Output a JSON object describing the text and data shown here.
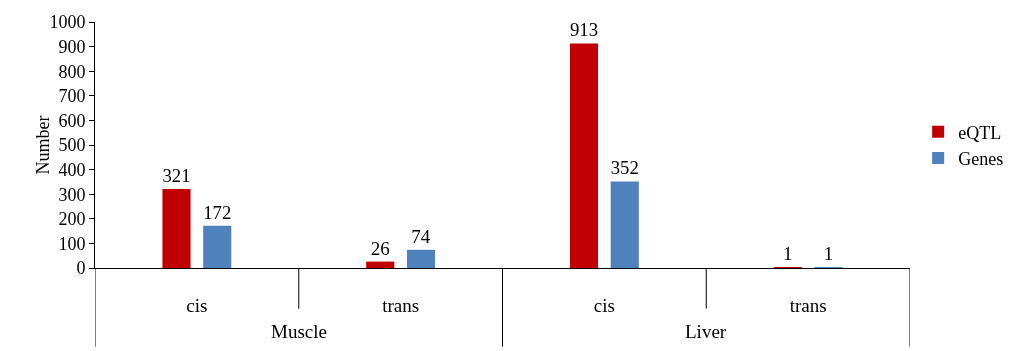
{
  "chart_data": {
    "type": "bar",
    "ylabel": "Number",
    "categories": [
      "cis",
      "trans",
      "cis",
      "trans"
    ],
    "series": [
      {
        "name": "eQTL",
        "color": "#c00000",
        "values": [
          321,
          26,
          913,
          1
        ]
      },
      {
        "name": "Genes",
        "color": "#4f81bd",
        "values": [
          172,
          74,
          352,
          1
        ]
      }
    ],
    "annotations": [
      "Muscle",
      "Liver"
    ],
    "ylim": [
      0,
      1000
    ],
    "yticks": [
      0,
      100,
      200,
      300,
      400,
      500,
      600,
      700,
      800,
      900,
      1000
    ],
    "grid": false,
    "legend": "right",
    "data_labels": true
  }
}
